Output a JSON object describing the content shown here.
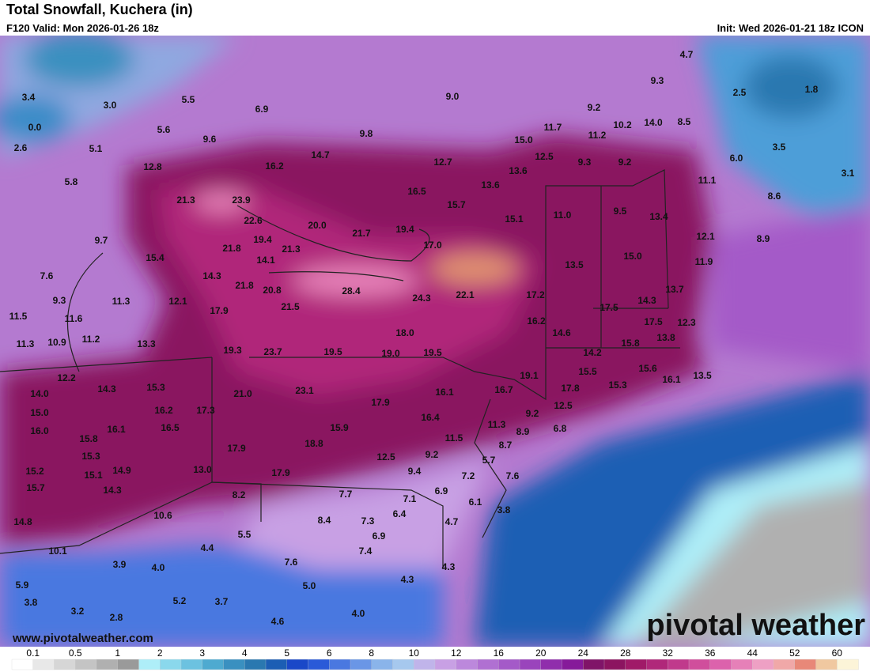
{
  "header": {
    "title": "Total Snowfall, Kuchera (in)",
    "valid": "F120 Valid: Mon 2026-01-26 18z",
    "init": "Init: Wed 2026-01-21 18z ICON"
  },
  "map": {
    "labels": [
      "4.7",
      "9.3",
      "2.5",
      "1.8",
      "3.4",
      "3.0",
      "5.5",
      "6.9",
      "9.0",
      "9.2",
      "10.2",
      "14.0",
      "8.5",
      "0.0",
      "5.6",
      "11.7",
      "11.2",
      "9.8",
      "9.6",
      "15.0",
      "2.6",
      "5.1",
      "14.7",
      "12.5",
      "3.5",
      "6.0",
      "12.8",
      "16.2",
      "12.7",
      "9.3",
      "9.2",
      "13.6",
      "3.1",
      "11.1",
      "5.8",
      "13.6",
      "16.5",
      "21.3",
      "23.9",
      "8.6",
      "15.7",
      "9.5",
      "11.0",
      "13.4",
      "15.1",
      "22.6",
      "20.0",
      "21.7",
      "19.4",
      "12.1",
      "8.9",
      "9.7",
      "19.4",
      "17.0",
      "21.8",
      "21.3",
      "15.4",
      "15.0",
      "11.9",
      "14.1",
      "13.5",
      "7.6",
      "14.3",
      "21.8",
      "20.8",
      "28.4",
      "24.3",
      "22.1",
      "17.2",
      "13.7",
      "9.3",
      "11.3",
      "12.1",
      "17.9",
      "21.5",
      "14.3",
      "17.5",
      "11.5",
      "11.6",
      "16.2",
      "17.5",
      "12.3",
      "18.0",
      "14.6",
      "13.8",
      "11.3",
      "10.9",
      "11.2",
      "13.3",
      "15.8",
      "19.3",
      "23.7",
      "19.5",
      "19.0",
      "19.5",
      "14.2",
      "15.6",
      "12.2",
      "15.5",
      "19.1",
      "16.1",
      "13.5",
      "14.0",
      "14.3",
      "15.3",
      "17.8",
      "15.3",
      "21.0",
      "23.1",
      "17.9",
      "16.1",
      "16.7",
      "15.0",
      "16.2",
      "17.3",
      "12.5",
      "9.2",
      "16.5",
      "16.0",
      "16.1",
      "15.9",
      "16.4",
      "11.3",
      "6.8",
      "8.9",
      "15.8",
      "11.5",
      "8.7",
      "17.9",
      "18.8",
      "15.3",
      "9.2",
      "12.5",
      "5.7",
      "15.2",
      "14.9",
      "13.0",
      "17.9",
      "9.4",
      "7.2",
      "7.6",
      "15.1",
      "15.7",
      "14.3",
      "6.9",
      "8.2",
      "7.7",
      "7.1",
      "6.1",
      "10.6",
      "8.4",
      "6.4",
      "3.8",
      "7.3",
      "4.7",
      "14.8",
      "5.5",
      "6.9",
      "4.4",
      "7.4",
      "10.1",
      "3.9",
      "4.0",
      "7.6",
      "4.3",
      "4.3",
      "5.9",
      "5.0",
      "3.8",
      "5.2",
      "3.7",
      "3.2",
      "4.0",
      "2.8",
      "4.6"
    ],
    "watermark": "www.pivotalweather.com",
    "logo": "pivotal weather"
  },
  "legend": {
    "labels": [
      "0.1",
      "0.5",
      "1",
      "2",
      "3",
      "4",
      "5",
      "6",
      "8",
      "10",
      "12",
      "16",
      "20",
      "24",
      "28",
      "32",
      "36",
      "44",
      "52",
      "60"
    ],
    "colors": [
      "#ffffff",
      "#e8e8e8",
      "#d6d6d6",
      "#c4c4c4",
      "#b0b0b0",
      "#9a9a9a",
      "#aeeef8",
      "#8ad8ec",
      "#6cc2e0",
      "#4eaad0",
      "#3a90c0",
      "#2a78b0",
      "#1c5eb4",
      "#1a48c8",
      "#2a5ad8",
      "#4a78e0",
      "#6a96e6",
      "#8ab4ea",
      "#a6c8ee",
      "#c0b4ea",
      "#c8a0e4",
      "#bc88dc",
      "#b070d2",
      "#a45ac8",
      "#9a44bc",
      "#902eac",
      "#861a9a",
      "#801468",
      "#8c1460",
      "#a01a68",
      "#b0287a",
      "#c03a8c",
      "#d04e9c",
      "#dc62ac",
      "#e680b8",
      "#eea0c4",
      "#f0a8a8",
      "#e88878",
      "#f0c8a0",
      "#fcf4d8"
    ]
  }
}
